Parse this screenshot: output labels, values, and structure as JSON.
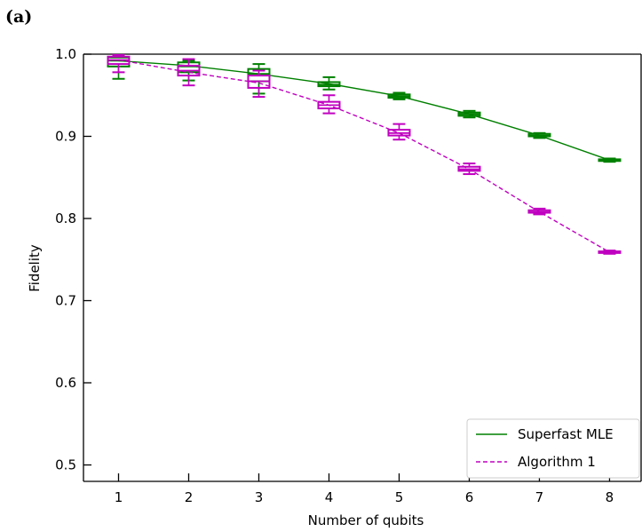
{
  "panel_label": "(a)",
  "chart_data": {
    "type": "line",
    "xlabel": "Number of qubits",
    "ylabel": "Fidelity",
    "xlim": [
      0.5,
      8.45
    ],
    "ylim": [
      0.48,
      1.0
    ],
    "x_ticks": [
      1,
      2,
      3,
      4,
      5,
      6,
      7,
      8
    ],
    "y_ticks": [
      0.5,
      0.6,
      0.7,
      0.8,
      0.9,
      1.0
    ],
    "x_tick_labels": [
      "1",
      "2",
      "3",
      "4",
      "5",
      "6",
      "7",
      "8"
    ],
    "y_tick_labels": [
      "0.5",
      "0.6",
      "0.7",
      "0.8",
      "0.9",
      "1.0"
    ],
    "grid": false,
    "legend_position": "bottom-right",
    "x": [
      1,
      2,
      3,
      4,
      5,
      6,
      7,
      8
    ],
    "series": [
      {
        "name": "Superfast MLE",
        "color": "#008000",
        "line_style": "solid",
        "values": [
          0.992,
          0.986,
          0.976,
          0.964,
          0.949,
          0.927,
          0.901,
          0.871
        ],
        "boxes": [
          {
            "whisker_low": 0.97,
            "q1": 0.985,
            "median": 0.992,
            "q3": 0.996,
            "whisker_high": 0.999
          },
          {
            "whisker_low": 0.968,
            "q1": 0.978,
            "median": 0.985,
            "q3": 0.99,
            "whisker_high": 0.992
          },
          {
            "whisker_low": 0.952,
            "q1": 0.967,
            "median": 0.976,
            "q3": 0.982,
            "whisker_high": 0.988
          },
          {
            "whisker_low": 0.957,
            "q1": 0.961,
            "median": 0.963,
            "q3": 0.966,
            "whisker_high": 0.972
          },
          {
            "whisker_low": 0.945,
            "q1": 0.947,
            "median": 0.949,
            "q3": 0.951,
            "whisker_high": 0.953
          },
          {
            "whisker_low": 0.923,
            "q1": 0.925,
            "median": 0.927,
            "q3": 0.929,
            "whisker_high": 0.931
          },
          {
            "whisker_low": 0.898,
            "q1": 0.9,
            "median": 0.901,
            "q3": 0.903,
            "whisker_high": 0.904
          },
          {
            "whisker_low": 0.869,
            "q1": 0.87,
            "median": 0.871,
            "q3": 0.872,
            "whisker_high": 0.873
          }
        ]
      },
      {
        "name": "Algorithm 1",
        "color": "#c000c0",
        "line_style": "dashed",
        "values": [
          0.993,
          0.978,
          0.965,
          0.938,
          0.904,
          0.86,
          0.808,
          0.759
        ],
        "boxes": [
          {
            "whisker_low": 0.978,
            "q1": 0.988,
            "median": 0.993,
            "q3": 0.997,
            "whisker_high": 0.999
          },
          {
            "whisker_low": 0.962,
            "q1": 0.974,
            "median": 0.98,
            "q3": 0.986,
            "whisker_high": 0.994
          },
          {
            "whisker_low": 0.948,
            "q1": 0.959,
            "median": 0.967,
            "q3": 0.974,
            "whisker_high": 0.98
          },
          {
            "whisker_low": 0.928,
            "q1": 0.934,
            "median": 0.938,
            "q3": 0.942,
            "whisker_high": 0.95
          },
          {
            "whisker_low": 0.896,
            "q1": 0.901,
            "median": 0.904,
            "q3": 0.908,
            "whisker_high": 0.915
          },
          {
            "whisker_low": 0.854,
            "q1": 0.858,
            "median": 0.86,
            "q3": 0.863,
            "whisker_high": 0.867
          },
          {
            "whisker_low": 0.805,
            "q1": 0.807,
            "median": 0.808,
            "q3": 0.81,
            "whisker_high": 0.812
          },
          {
            "whisker_low": 0.757,
            "q1": 0.758,
            "median": 0.759,
            "q3": 0.76,
            "whisker_high": 0.761
          }
        ]
      }
    ]
  }
}
